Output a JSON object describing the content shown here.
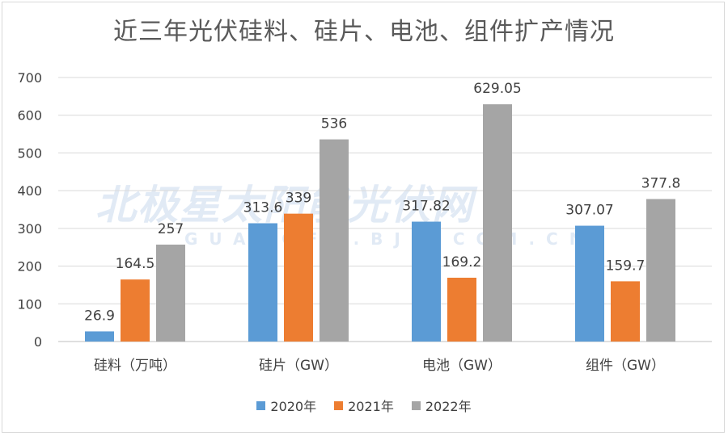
{
  "chart_data": {
    "type": "bar",
    "title": "近三年光伏硅料、硅片、电池、组件扩产情况",
    "categories": [
      "硅料（万吨）",
      "硅片（GW）",
      "电池（GW）",
      "组件（GW）"
    ],
    "series": [
      {
        "name": "2020年",
        "color": "#5b9bd5",
        "values": [
          26.9,
          313.6,
          317.82,
          307.07
        ],
        "labels": [
          "26.9",
          "313.6",
          "317.82",
          "307.07"
        ]
      },
      {
        "name": "2021年",
        "color": "#ed7d31",
        "values": [
          164.5,
          339,
          169.2,
          159.7
        ],
        "labels": [
          "164.5",
          "339",
          "169.2",
          "159.7"
        ]
      },
      {
        "name": "2022年",
        "color": "#a5a5a5",
        "values": [
          257,
          536,
          629.05,
          377.8
        ],
        "labels": [
          "257",
          "536",
          "629.05",
          "377.8"
        ]
      }
    ],
    "ylim": [
      0,
      700
    ],
    "yticks": [
      0,
      100,
      200,
      300,
      400,
      500,
      600,
      700
    ],
    "grid": true,
    "legend_position": "bottom"
  },
  "watermark": {
    "main": "北极星太阳能光伏网",
    "sub": "GUANGFU.BJX.COM.CN"
  }
}
